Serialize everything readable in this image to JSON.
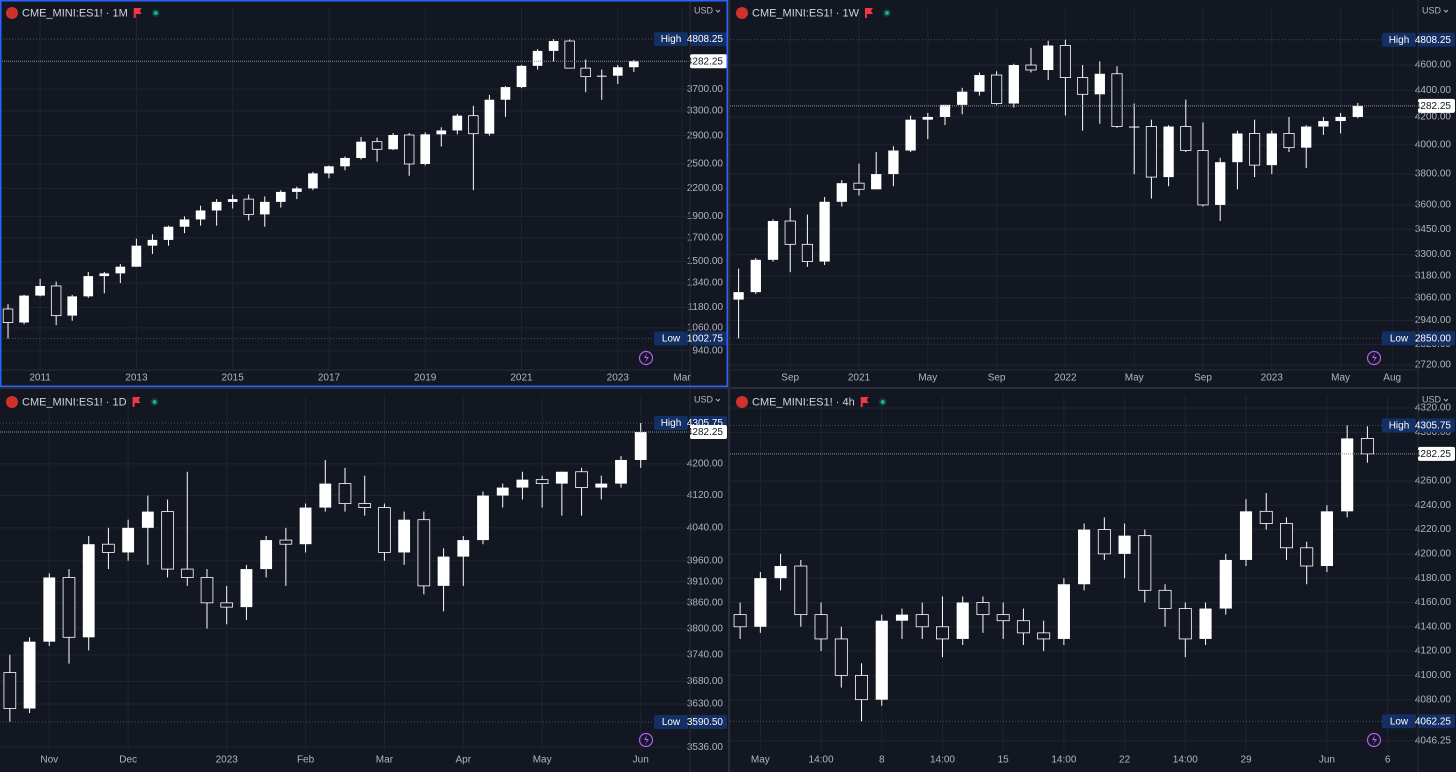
{
  "chart_data": [
    {
      "type": "candlestick",
      "title": "CME_MINI:ES1! · 1M",
      "currency": "USD",
      "log_scale": true,
      "grid": true,
      "color": "#ffffff",
      "ylim": [
        850,
        5370
      ],
      "yticks": [
        {
          "value": 940,
          "label": "940.00"
        },
        {
          "value": 1060,
          "label": "1060.00"
        },
        {
          "value": 1180,
          "label": "1180.00"
        },
        {
          "value": 1340,
          "label": "1340.00"
        },
        {
          "value": 1500,
          "label": "1500.00"
        },
        {
          "value": 1700,
          "label": "1700.00"
        },
        {
          "value": 1900,
          "label": "1900.00"
        },
        {
          "value": 2200,
          "label": "2200.00"
        },
        {
          "value": 2500,
          "label": "2500.00"
        },
        {
          "value": 2900,
          "label": "2900.00"
        },
        {
          "value": 3300,
          "label": "3300.00"
        },
        {
          "value": 3700,
          "label": "3700.00"
        }
      ],
      "categories": [
        null,
        null,
        "2011",
        null,
        null,
        null,
        null,
        null,
        "2013",
        null,
        null,
        null,
        null,
        null,
        "2015",
        null,
        null,
        null,
        null,
        null,
        "2017",
        null,
        null,
        null,
        null,
        null,
        "2019",
        null,
        null,
        null,
        null,
        null,
        "2021",
        null,
        null,
        null,
        null,
        null,
        "2023",
        null,
        null,
        null,
        "Mar"
      ],
      "open": [
        1170,
        1090,
        1255,
        1320,
        1130,
        1250,
        1390,
        1410,
        1460,
        1630,
        1680,
        1800,
        1870,
        1960,
        2050,
        2080,
        1920,
        2050,
        2160,
        2200,
        2380,
        2470,
        2580,
        2810,
        2700,
        2910,
        2500,
        2920,
        2980,
        3220,
        2930,
        3500,
        3740,
        4180,
        4520,
        4760,
        4130,
        3950,
        3970,
        4150,
        null,
        null,
        null
      ],
      "high": [
        1200,
        1260,
        1370,
        1350,
        1260,
        1420,
        1420,
        1480,
        1690,
        1730,
        1810,
        1900,
        2010,
        2080,
        2130,
        2130,
        2110,
        2180,
        2220,
        2400,
        2480,
        2600,
        2880,
        2870,
        2940,
        2940,
        2950,
        3030,
        3250,
        3390,
        3590,
        3760,
        4200,
        4560,
        4808.25,
        4800,
        4320,
        4100,
        4200,
        4310,
        null,
        null,
        null
      ],
      "low": [
        1002.75,
        1080,
        1250,
        1075,
        1100,
        1240,
        1270,
        1340,
        1460,
        1560,
        1630,
        1740,
        1810,
        1810,
        1980,
        1860,
        1800,
        1990,
        2080,
        2180,
        2320,
        2420,
        2560,
        2530,
        2690,
        2350,
        2480,
        2740,
        2920,
        2180,
        2900,
        3200,
        3720,
        4100,
        4280,
        4150,
        3640,
        3500,
        3800,
        4050,
        null,
        null,
        null
      ],
      "close": [
        1090,
        1255,
        1320,
        1130,
        1250,
        1390,
        1410,
        1460,
        1630,
        1680,
        1800,
        1870,
        1960,
        2050,
        2080,
        1920,
        2050,
        2160,
        2200,
        2380,
        2470,
        2580,
        2810,
        2700,
        2910,
        2500,
        2920,
        2980,
        3220,
        2930,
        3500,
        3740,
        4180,
        4520,
        4760,
        4130,
        3950,
        3970,
        4150,
        4282.25,
        null,
        null,
        null
      ],
      "high_label": "High",
      "high_value": 4808.25,
      "low_label": "Low",
      "low_value": 1002.75,
      "last_value": 4282.25
    },
    {
      "type": "candlestick",
      "title": "CME_MINI:ES1! · 1W",
      "currency": "USD",
      "log_scale": true,
      "grid": true,
      "color": "#ffffff",
      "ylim": [
        2696,
        4995
      ],
      "yticks": [
        {
          "value": 2720,
          "label": "2720.00"
        },
        {
          "value": 2820,
          "label": "2820.00"
        },
        {
          "value": 2940,
          "label": "2940.00"
        },
        {
          "value": 3060,
          "label": "3060.00"
        },
        {
          "value": 3180,
          "label": "3180.00"
        },
        {
          "value": 3300,
          "label": "3300.00"
        },
        {
          "value": 3450,
          "label": "3450.00"
        },
        {
          "value": 3600,
          "label": "3600.00"
        },
        {
          "value": 3800,
          "label": "3800.00"
        },
        {
          "value": 4000,
          "label": "4000.00"
        },
        {
          "value": 4200,
          "label": "4200.00"
        },
        {
          "value": 4400,
          "label": "4400.00"
        },
        {
          "value": 4600,
          "label": "4600.00"
        }
      ],
      "categories": [
        null,
        null,
        null,
        "Sep",
        null,
        null,
        null,
        "2021",
        null,
        null,
        null,
        "May",
        null,
        null,
        null,
        "Sep",
        null,
        null,
        null,
        "2022",
        null,
        null,
        null,
        "May",
        null,
        null,
        null,
        "Sep",
        null,
        null,
        null,
        "2023",
        null,
        null,
        null,
        "May",
        null,
        null,
        "Aug",
        null
      ],
      "open": [
        3050,
        3090,
        3270,
        3500,
        3360,
        3260,
        3620,
        3740,
        3700,
        3800,
        3960,
        4180,
        4200,
        4290,
        4390,
        4520,
        4300,
        4600,
        4560,
        4760,
        4500,
        4370,
        4530,
        4130,
        4130,
        3780,
        4130,
        3960,
        3600,
        3880,
        4080,
        3860,
        4080,
        3980,
        4130,
        4170,
        4200,
        null,
        null,
        null
      ],
      "high": [
        3220,
        3280,
        3510,
        3580,
        3540,
        3650,
        3760,
        3870,
        3950,
        3990,
        4210,
        4230,
        4290,
        4420,
        4540,
        4550,
        4610,
        4740,
        4800,
        4808.25,
        4600,
        4630,
        4590,
        4300,
        4180,
        4140,
        4330,
        4160,
        3910,
        4100,
        4180,
        4100,
        4200,
        4140,
        4200,
        4230,
        4305,
        null,
        null,
        null
      ],
      "low": [
        2850,
        3080,
        3260,
        3200,
        3230,
        3240,
        3590,
        3660,
        3700,
        3720,
        3950,
        4040,
        4140,
        4220,
        4360,
        4290,
        4270,
        4540,
        4480,
        4210,
        4100,
        4150,
        4120,
        3800,
        3640,
        3720,
        3950,
        3590,
        3500,
        3700,
        3780,
        3800,
        3950,
        3840,
        4070,
        4080,
        4190,
        null,
        null,
        null
      ],
      "close": [
        3090,
        3270,
        3500,
        3360,
        3260,
        3620,
        3740,
        3700,
        3800,
        3960,
        4180,
        4200,
        4290,
        4390,
        4520,
        4300,
        4600,
        4560,
        4760,
        4500,
        4370,
        4530,
        4130,
        4130,
        3780,
        4130,
        3960,
        3600,
        3880,
        4080,
        3860,
        4080,
        3980,
        4130,
        4170,
        4200,
        4282.25,
        null,
        null,
        null
      ],
      "high_label": "High",
      "high_value": 4808.25,
      "low_label": "Low",
      "low_value": {
        "value": 2850,
        "label": "2850.00"
      },
      "last_value": 4282.25
    },
    {
      "type": "candlestick",
      "title": "CME_MINI:ES1! · 1D",
      "currency": "USD",
      "log_scale": true,
      "grid": true,
      "color": "#ffffff",
      "ylim": [
        3483,
        4353
      ],
      "yticks": [
        {
          "value": 3536,
          "label": "3536.00"
        },
        {
          "value": 3630,
          "label": "3630.00"
        },
        {
          "value": 3680,
          "label": "3680.00"
        },
        {
          "value": 3740,
          "label": "3740.00"
        },
        {
          "value": 3800,
          "label": "3800.00"
        },
        {
          "value": 3860,
          "label": "3860.00"
        },
        {
          "value": 3910,
          "label": "3910.00"
        },
        {
          "value": 3960,
          "label": "3960.00"
        },
        {
          "value": 4040,
          "label": "4040.00"
        },
        {
          "value": 4120,
          "label": "4120.00"
        },
        {
          "value": 4200,
          "label": "4200.00"
        }
      ],
      "categories": [
        null,
        null,
        "Nov",
        null,
        null,
        null,
        "Dec",
        null,
        null,
        null,
        null,
        "2023",
        null,
        null,
        null,
        "Feb",
        null,
        null,
        null,
        "Mar",
        null,
        null,
        null,
        "Apr",
        null,
        null,
        null,
        "May",
        null,
        null,
        null,
        null,
        "Jun",
        null,
        null
      ],
      "open": [
        3700,
        3620,
        3770,
        3920,
        3780,
        4000,
        3980,
        4040,
        4080,
        3940,
        3920,
        3860,
        3850,
        3940,
        4010,
        4000,
        4090,
        4150,
        4100,
        4090,
        3980,
        4060,
        3900,
        3970,
        4010,
        4120,
        4140,
        4160,
        4150,
        4180,
        4140,
        4150,
        4210,
        null,
        null
      ],
      "high": [
        3740,
        3780,
        3930,
        3940,
        4020,
        4040,
        4060,
        4120,
        4110,
        4180,
        3940,
        3900,
        3950,
        4020,
        4040,
        4100,
        4210,
        4190,
        4170,
        4100,
        4080,
        4080,
        3990,
        4020,
        4130,
        4150,
        4180,
        4170,
        4180,
        4190,
        4170,
        4220,
        4305.75,
        null,
        null
      ],
      "low": [
        3590.5,
        3610,
        3760,
        3720,
        3750,
        3940,
        3960,
        3950,
        3920,
        3900,
        3800,
        3810,
        3820,
        3920,
        3900,
        3980,
        4080,
        4080,
        4070,
        3960,
        3950,
        3880,
        3840,
        3900,
        4000,
        4090,
        4110,
        4090,
        4070,
        4070,
        4110,
        4140,
        4190,
        null,
        null
      ],
      "close": [
        3620,
        3770,
        3920,
        3780,
        4000,
        3980,
        4040,
        4080,
        3940,
        3920,
        3860,
        3850,
        3940,
        4010,
        4000,
        4090,
        4150,
        4100,
        4090,
        3980,
        4060,
        3900,
        3970,
        4010,
        4120,
        4140,
        4160,
        4150,
        4180,
        4140,
        4150,
        4210,
        4282.25,
        null,
        null
      ],
      "high_label": "High",
      "high_value": 4305.75,
      "low_label": "Low",
      "low_value": {
        "value": 3590.5,
        "label": "3590.50"
      },
      "last_value": 4282.25
    },
    {
      "type": "candlestick",
      "title": "CME_MINI:ES1! · 4h",
      "currency": "USD",
      "log_scale": false,
      "grid": true,
      "color": "#ffffff",
      "ylim": [
        4020.5,
        4322.5
      ],
      "yticks": [
        4046.25,
        {
          "value": 4080,
          "label": "4080.00"
        },
        {
          "value": 4100,
          "label": "4100.00"
        },
        {
          "value": 4120,
          "label": "4120.00"
        },
        {
          "value": 4140,
          "label": "4140.00"
        },
        {
          "value": 4160,
          "label": "4160.00"
        },
        {
          "value": 4180,
          "label": "4180.00"
        },
        {
          "value": 4200,
          "label": "4200.00"
        },
        {
          "value": 4220,
          "label": "4220.00"
        },
        {
          "value": 4240,
          "label": "4240.00"
        },
        {
          "value": 4260,
          "label": "4260.00"
        },
        {
          "value": 4300,
          "label": "4300.00"
        },
        {
          "value": 4320,
          "label": "4320.00"
        }
      ],
      "categories": [
        null,
        "May",
        null,
        null,
        "14:00",
        null,
        null,
        "8",
        null,
        null,
        "14:00",
        null,
        null,
        "15",
        null,
        null,
        "14:00",
        null,
        null,
        "22",
        null,
        null,
        "14:00",
        null,
        null,
        "29",
        null,
        null,
        null,
        "Jun",
        null,
        null,
        "6",
        null
      ],
      "open": [
        4150,
        4140,
        4180,
        4190,
        4150,
        4130,
        4100,
        4080,
        4145,
        4150,
        4140,
        4130,
        4160,
        4150,
        4145,
        4135,
        4130,
        4175,
        4220,
        4200,
        4215,
        4170,
        4155,
        4130,
        4155,
        4195,
        4235,
        4225,
        4205,
        4190,
        4235,
        4295,
        null,
        null
      ],
      "high": [
        4160,
        4185,
        4200,
        4195,
        4160,
        4140,
        4110,
        4150,
        4155,
        4160,
        4165,
        4165,
        4165,
        4160,
        4155,
        4145,
        4180,
        4225,
        4230,
        4225,
        4220,
        4175,
        4160,
        4160,
        4200,
        4245,
        4250,
        4230,
        4210,
        4240,
        4305.75,
        4305,
        null,
        null
      ],
      "low": [
        4130,
        4135,
        4170,
        4140,
        4120,
        4090,
        4062.25,
        4075,
        4130,
        4130,
        4115,
        4125,
        4135,
        4130,
        4125,
        4120,
        4125,
        4170,
        4195,
        4180,
        4160,
        4140,
        4115,
        4125,
        4150,
        4190,
        4220,
        4195,
        4175,
        4185,
        4230,
        4275,
        null,
        null
      ],
      "close": [
        4140,
        4180,
        4190,
        4150,
        4130,
        4100,
        4080,
        4145,
        4150,
        4140,
        4130,
        4160,
        4150,
        4145,
        4135,
        4130,
        4175,
        4220,
        4200,
        4215,
        4170,
        4155,
        4130,
        4155,
        4195,
        4235,
        4225,
        4205,
        4190,
        4235,
        4295,
        4282.25,
        null,
        null
      ],
      "high_label": "High",
      "high_value": 4305.75,
      "low_label": "Low",
      "low_value": 4062.25,
      "last_value": 4282.25
    }
  ]
}
